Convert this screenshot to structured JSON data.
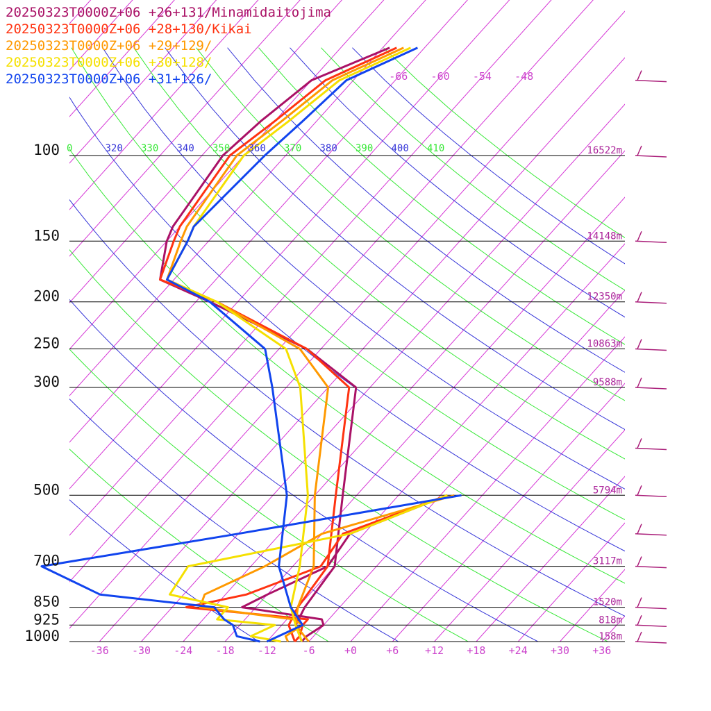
{
  "colors": {
    "isotherm": "#d535d5",
    "pressure_line": "#000000",
    "theta_green": "#35e835",
    "theta_blue": "#3535d8",
    "wind_barb": "#aa1f7a"
  },
  "chart_data": {
    "type": "line",
    "title": "",
    "xlabel": "",
    "ylabel": "",
    "pressure_levels": [
      100,
      150,
      200,
      250,
      300,
      500,
      700,
      850,
      925,
      1000
    ],
    "pressure_labels": [
      "100",
      "150",
      "200",
      "250",
      "300",
      "500",
      "700",
      "850",
      "925",
      "1000"
    ],
    "x_ticks": [
      "-36",
      "-30",
      "-24",
      "-18",
      "-12",
      "-6",
      "+0",
      "+6",
      "+12",
      "+18",
      "+24",
      "+30",
      "+36"
    ],
    "upper_isotherm_labels": [
      "-66",
      "-60",
      "-54",
      "-48"
    ],
    "theta_labels": [
      {
        "text": "0",
        "color": "#35e835"
      },
      {
        "text": "320",
        "color": "#3535d8"
      },
      {
        "text": "330",
        "color": "#35e835"
      },
      {
        "text": "340",
        "color": "#3535d8"
      },
      {
        "text": "350",
        "color": "#35e835"
      },
      {
        "text": "360",
        "color": "#3535d8"
      },
      {
        "text": "370",
        "color": "#35e835"
      },
      {
        "text": "380",
        "color": "#3535d8"
      },
      {
        "text": "390",
        "color": "#35e835"
      },
      {
        "text": "400",
        "color": "#3535d8"
      },
      {
        "text": "410",
        "color": "#35e835"
      }
    ],
    "heights": [
      "16522m",
      "14148m",
      "12350m",
      "10863m",
      "9588m",
      "5794m",
      "3117m",
      "1520m",
      "818m",
      "158m"
    ],
    "series": [
      {
        "name": "20250323T0000Z+06 +26+131/Minamidaitojima",
        "color": "#aa1166",
        "temp": [
          [
            -71,
            60
          ],
          [
            -78,
            70
          ],
          [
            -80,
            85
          ],
          [
            -81,
            100
          ],
          [
            -79,
            140
          ],
          [
            -78,
            150
          ],
          [
            -74,
            180
          ],
          [
            -64,
            200
          ],
          [
            -44,
            250
          ],
          [
            -32,
            300
          ],
          [
            -20,
            500
          ],
          [
            -12,
            700
          ],
          [
            -11,
            850
          ],
          [
            -10,
            925
          ],
          [
            -7,
            1000
          ]
        ],
        "dew": [
          [
            -5,
            500
          ],
          [
            -14,
            600
          ],
          [
            -13,
            700
          ],
          [
            -18,
            800
          ],
          [
            -20,
            850
          ],
          [
            -7,
            900
          ],
          [
            -6,
            925
          ],
          [
            -7,
            975
          ],
          [
            -7,
            1000
          ]
        ]
      },
      {
        "name": "20250323T0000Z+06 +28+130/Kikai",
        "color": "#ff3311",
        "temp": [
          [
            -70,
            60
          ],
          [
            -76,
            70
          ],
          [
            -78,
            85
          ],
          [
            -80,
            100
          ],
          [
            -78,
            140
          ],
          [
            -77,
            150
          ],
          [
            -74,
            180
          ],
          [
            -63,
            200
          ],
          [
            -44,
            250
          ],
          [
            -33,
            300
          ],
          [
            -21,
            500
          ],
          [
            -13,
            700
          ],
          [
            -12,
            850
          ],
          [
            -11,
            925
          ],
          [
            -8,
            1000
          ]
        ],
        "dew": [
          [
            -5,
            500
          ],
          [
            -15,
            600
          ],
          [
            -14,
            700
          ],
          [
            -21,
            800
          ],
          [
            -28,
            850
          ],
          [
            -9,
            900
          ],
          [
            -9,
            925
          ],
          [
            -8,
            975
          ],
          [
            -8,
            1000
          ]
        ]
      },
      {
        "name": "20250323T0000Z+06 +29+129/",
        "color": "#ff9900",
        "temp": [
          [
            -69,
            60
          ],
          [
            -75,
            70
          ],
          [
            -77,
            85
          ],
          [
            -79,
            100
          ],
          [
            -77,
            140
          ],
          [
            -76,
            150
          ],
          [
            -73,
            180
          ],
          [
            -63,
            200
          ],
          [
            -45,
            250
          ],
          [
            -36,
            300
          ],
          [
            -24,
            500
          ],
          [
            -15,
            700
          ],
          [
            -12,
            850
          ],
          [
            -10,
            925
          ],
          [
            -6,
            1000
          ]
        ],
        "dew": [
          [
            -4,
            500
          ],
          [
            -18,
            600
          ],
          [
            -22,
            700
          ],
          [
            -27,
            800
          ],
          [
            -26,
            850
          ],
          [
            -11,
            900
          ],
          [
            -9,
            925
          ],
          [
            -10,
            975
          ],
          [
            -9,
            1000
          ]
        ]
      },
      {
        "name": "20250323T0000Z+06 +30+128/",
        "color": "#f5e000",
        "temp": [
          [
            -68,
            60
          ],
          [
            -74,
            70
          ],
          [
            -76,
            85
          ],
          [
            -78,
            100
          ],
          [
            -76,
            140
          ],
          [
            -75,
            150
          ],
          [
            -73,
            180
          ],
          [
            -63,
            200
          ],
          [
            -47,
            250
          ],
          [
            -40,
            300
          ],
          [
            -25,
            500
          ],
          [
            -17,
            700
          ],
          [
            -13,
            850
          ],
          [
            -10,
            925
          ],
          [
            -7,
            1000
          ]
        ],
        "dew": [
          [
            -5,
            500
          ],
          [
            -14,
            600
          ],
          [
            -33,
            700
          ],
          [
            -32,
            800
          ],
          [
            -22,
            850
          ],
          [
            -22,
            900
          ],
          [
            -13,
            925
          ],
          [
            -15,
            975
          ],
          [
            -10,
            1000
          ]
        ]
      },
      {
        "name": "20250323T0000Z+06 +31+126/",
        "color": "#1144ee",
        "temp": [
          [
            -67,
            60
          ],
          [
            -73,
            70
          ],
          [
            -74,
            85
          ],
          [
            -75,
            100
          ],
          [
            -76,
            140
          ],
          [
            -75,
            150
          ],
          [
            -73,
            180
          ],
          [
            -64,
            200
          ],
          [
            -50,
            250
          ],
          [
            -44,
            300
          ],
          [
            -28,
            500
          ],
          [
            -20,
            700
          ],
          [
            -13,
            850
          ],
          [
            -9,
            925
          ],
          [
            -12,
            1000
          ]
        ],
        "dew": [
          [
            -3,
            500
          ],
          [
            -30,
            600
          ],
          [
            -54,
            700
          ],
          [
            -42,
            800
          ],
          [
            -24,
            850
          ],
          [
            -21,
            900
          ],
          [
            -19,
            925
          ],
          [
            -17,
            975
          ],
          [
            -13,
            1000
          ]
        ]
      }
    ],
    "barb_levels": [
      70,
      100,
      150,
      200,
      250,
      300,
      400,
      500,
      600,
      700,
      850,
      925,
      1000
    ]
  }
}
